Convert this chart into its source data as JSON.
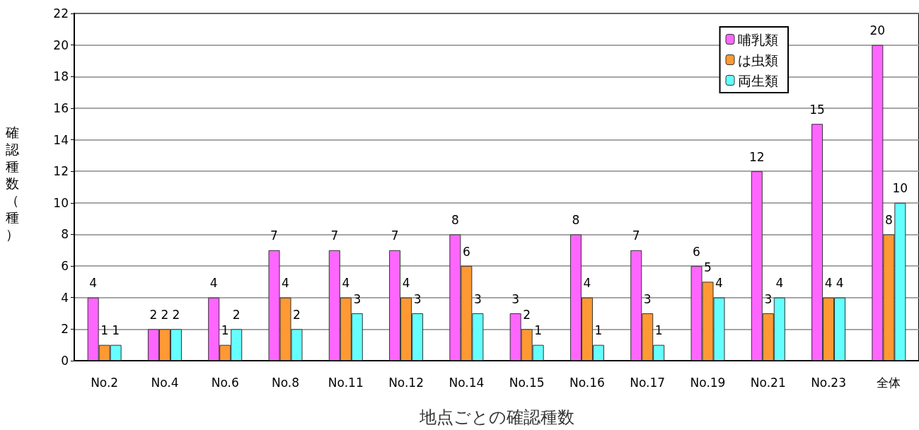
{
  "chart_data": {
    "type": "bar",
    "xlabel": "地点ごとの確認種数",
    "ylabel": "確認種数（種）",
    "categories": [
      "No.2",
      "No.4",
      "No.6",
      "No.8",
      "No.11",
      "No.12",
      "No.14",
      "No.15",
      "No.16",
      "No.17",
      "No.19",
      "No.21",
      "No.23",
      "全体"
    ],
    "series": [
      {
        "name": "哺乳類",
        "color": "#ff66ff",
        "values": [
          4,
          2,
          4,
          7,
          7,
          7,
          8,
          3,
          8,
          7,
          6,
          12,
          15,
          20
        ]
      },
      {
        "name": "は虫類",
        "color": "#ff9933",
        "values": [
          1,
          2,
          1,
          4,
          4,
          4,
          6,
          2,
          4,
          3,
          5,
          3,
          4,
          8
        ]
      },
      {
        "name": "両生類",
        "color": "#66ffff",
        "values": [
          1,
          2,
          2,
          2,
          3,
          3,
          3,
          1,
          1,
          1,
          4,
          4,
          4,
          10
        ]
      }
    ],
    "ylim": [
      0,
      22
    ],
    "yticks": [
      0,
      2,
      4,
      6,
      8,
      10,
      12,
      14,
      16,
      18,
      20,
      22
    ],
    "grid": "y",
    "legend": "top right",
    "data_labels": true
  }
}
